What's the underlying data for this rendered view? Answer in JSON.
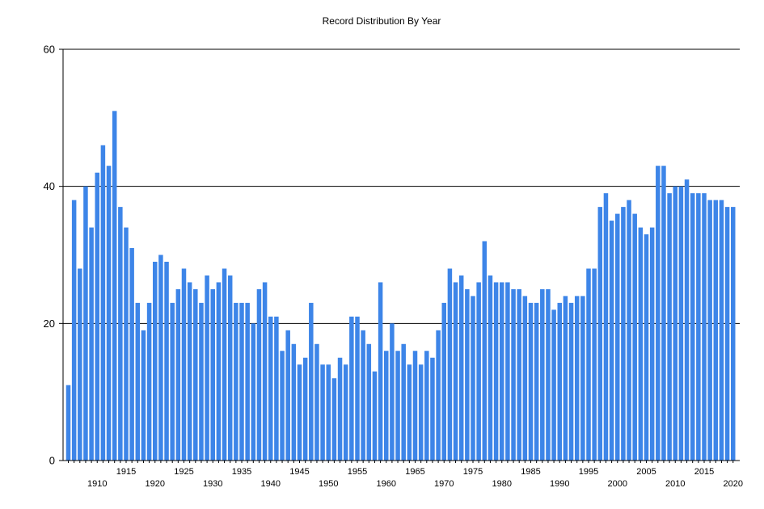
{
  "chart_data": {
    "type": "bar",
    "title": "Record Distribution By Year",
    "xlabel": "",
    "ylabel": "",
    "ylim": [
      0,
      60
    ],
    "y_ticks": [
      "0",
      "20",
      "40",
      "60"
    ],
    "x_tick_labels": [
      "1910",
      "1915",
      "1920",
      "1925",
      "1930",
      "1935",
      "1940",
      "1945",
      "1950",
      "1955",
      "1960",
      "1965",
      "1970",
      "1975",
      "1980",
      "1985",
      "1990",
      "1995",
      "2000",
      "2005",
      "2010",
      "2015",
      "2020"
    ],
    "grid": "horizontal",
    "bar_color": "#3D85E8",
    "categories": [
      1905,
      1906,
      1907,
      1908,
      1909,
      1910,
      1911,
      1912,
      1913,
      1914,
      1915,
      1916,
      1917,
      1918,
      1919,
      1920,
      1921,
      1922,
      1923,
      1924,
      1925,
      1926,
      1927,
      1928,
      1929,
      1930,
      1931,
      1932,
      1933,
      1934,
      1935,
      1936,
      1937,
      1938,
      1939,
      1940,
      1941,
      1942,
      1943,
      1944,
      1945,
      1946,
      1947,
      1948,
      1949,
      1950,
      1951,
      1952,
      1953,
      1954,
      1955,
      1956,
      1957,
      1958,
      1959,
      1960,
      1961,
      1962,
      1963,
      1964,
      1965,
      1966,
      1967,
      1968,
      1969,
      1970,
      1971,
      1972,
      1973,
      1974,
      1975,
      1976,
      1977,
      1978,
      1979,
      1980,
      1981,
      1982,
      1983,
      1984,
      1985,
      1986,
      1987,
      1988,
      1989,
      1990,
      1991,
      1992,
      1993,
      1994,
      1995,
      1996,
      1997,
      1998,
      1999,
      2000,
      2001,
      2002,
      2003,
      2004,
      2005,
      2006,
      2007,
      2008,
      2009,
      2010,
      2011,
      2012,
      2013,
      2014,
      2015,
      2016,
      2017,
      2018,
      2019,
      2020
    ],
    "values": [
      11,
      38,
      28,
      40,
      34,
      42,
      46,
      43,
      51,
      37,
      34,
      31,
      23,
      19,
      23,
      29,
      30,
      29,
      23,
      25,
      28,
      26,
      25,
      23,
      27,
      25,
      26,
      28,
      27,
      23,
      23,
      23,
      20,
      25,
      26,
      21,
      21,
      16,
      19,
      17,
      14,
      15,
      23,
      17,
      14,
      14,
      12,
      15,
      14,
      21,
      21,
      19,
      17,
      13,
      26,
      16,
      20,
      16,
      17,
      14,
      16,
      14,
      16,
      15,
      19,
      23,
      28,
      26,
      27,
      25,
      24,
      26,
      32,
      27,
      26,
      26,
      26,
      25,
      25,
      24,
      23,
      23,
      25,
      25,
      22,
      23,
      24,
      23,
      24,
      24,
      28,
      28,
      37,
      39,
      35,
      36,
      37,
      38,
      36,
      34,
      33,
      34,
      43,
      43,
      39,
      40,
      40,
      41,
      39,
      39,
      39,
      38,
      38,
      38,
      37,
      37
    ]
  }
}
